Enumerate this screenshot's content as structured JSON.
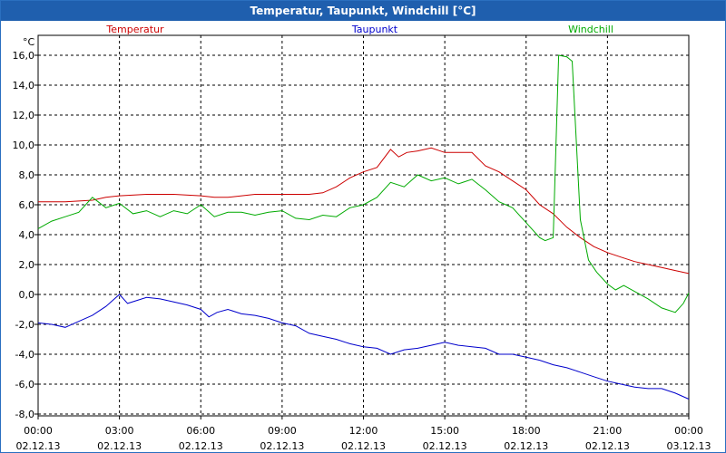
{
  "window": {
    "title": "Temperatur, Taupunkt, Windchill [°C]"
  },
  "chart_data": {
    "type": "line",
    "title": "Temperatur, Taupunkt, Windchill [°C]",
    "ylabel": "°C",
    "xlabel": "",
    "ylim": [
      -8,
      17
    ],
    "xlim": [
      0,
      24
    ],
    "grid": true,
    "yticks": [
      "16,0",
      "14,0",
      "12,0",
      "10,0",
      "8,0",
      "6,0",
      "4,0",
      "2,0",
      "0,0",
      "-2,0",
      "-4,0",
      "-6,0",
      "-8,0"
    ],
    "ytick_values": [
      16,
      14,
      12,
      10,
      8,
      6,
      4,
      2,
      0,
      -2,
      -4,
      -6,
      -8
    ],
    "xticks": [
      {
        "time": "00:00",
        "date": "02.12.13"
      },
      {
        "time": "03:00",
        "date": "02.12.13"
      },
      {
        "time": "06:00",
        "date": "02.12.13"
      },
      {
        "time": "09:00",
        "date": "02.12.13"
      },
      {
        "time": "12:00",
        "date": "02.12.13"
      },
      {
        "time": "15:00",
        "date": "02.12.13"
      },
      {
        "time": "18:00",
        "date": "02.12.13"
      },
      {
        "time": "21:00",
        "date": "02.12.13"
      },
      {
        "time": "00:00",
        "date": "03.12.13"
      }
    ],
    "series": [
      {
        "name": "Temperatur",
        "color": "#cc0000",
        "points": [
          [
            0,
            6.2
          ],
          [
            1,
            6.2
          ],
          [
            2,
            6.3
          ],
          [
            2.5,
            6.5
          ],
          [
            3,
            6.6
          ],
          [
            4,
            6.7
          ],
          [
            5,
            6.7
          ],
          [
            6,
            6.6
          ],
          [
            6.5,
            6.5
          ],
          [
            7,
            6.5
          ],
          [
            8,
            6.7
          ],
          [
            9,
            6.7
          ],
          [
            10,
            6.7
          ],
          [
            10.5,
            6.8
          ],
          [
            11,
            7.2
          ],
          [
            11.5,
            7.8
          ],
          [
            12,
            8.2
          ],
          [
            12.5,
            8.5
          ],
          [
            13,
            9.7
          ],
          [
            13.3,
            9.2
          ],
          [
            13.6,
            9.5
          ],
          [
            14,
            9.6
          ],
          [
            14.5,
            9.8
          ],
          [
            15,
            9.5
          ],
          [
            15.5,
            9.5
          ],
          [
            16,
            9.5
          ],
          [
            16.5,
            8.6
          ],
          [
            17,
            8.2
          ],
          [
            17.5,
            7.6
          ],
          [
            18,
            7.0
          ],
          [
            18.5,
            6.0
          ],
          [
            19,
            5.4
          ],
          [
            19.5,
            4.5
          ],
          [
            20,
            3.8
          ],
          [
            20.5,
            3.2
          ],
          [
            21,
            2.8
          ],
          [
            21.5,
            2.5
          ],
          [
            22,
            2.2
          ],
          [
            22.5,
            2.0
          ],
          [
            23,
            1.8
          ],
          [
            23.5,
            1.6
          ],
          [
            24,
            1.4
          ]
        ]
      },
      {
        "name": "Taupunkt",
        "color": "#0000cc",
        "points": [
          [
            0,
            -1.9
          ],
          [
            0.5,
            -2.0
          ],
          [
            1,
            -2.2
          ],
          [
            1.5,
            -1.8
          ],
          [
            2,
            -1.4
          ],
          [
            2.5,
            -0.8
          ],
          [
            3,
            0.0
          ],
          [
            3.3,
            -0.6
          ],
          [
            4,
            -0.2
          ],
          [
            4.5,
            -0.3
          ],
          [
            5,
            -0.5
          ],
          [
            5.5,
            -0.7
          ],
          [
            6,
            -1.0
          ],
          [
            6.3,
            -1.5
          ],
          [
            6.6,
            -1.2
          ],
          [
            7,
            -1.0
          ],
          [
            7.5,
            -1.3
          ],
          [
            8,
            -1.4
          ],
          [
            8.5,
            -1.6
          ],
          [
            9,
            -1.9
          ],
          [
            9.5,
            -2.1
          ],
          [
            10,
            -2.6
          ],
          [
            10.5,
            -2.8
          ],
          [
            11,
            -3.0
          ],
          [
            11.5,
            -3.3
          ],
          [
            12,
            -3.5
          ],
          [
            12.5,
            -3.6
          ],
          [
            13,
            -4.0
          ],
          [
            13.5,
            -3.7
          ],
          [
            14,
            -3.6
          ],
          [
            14.5,
            -3.4
          ],
          [
            15,
            -3.2
          ],
          [
            15.5,
            -3.4
          ],
          [
            16,
            -3.5
          ],
          [
            16.5,
            -3.6
          ],
          [
            17,
            -4.0
          ],
          [
            17.5,
            -4.0
          ],
          [
            18,
            -4.2
          ],
          [
            18.5,
            -4.4
          ],
          [
            19,
            -4.7
          ],
          [
            19.5,
            -4.9
          ],
          [
            20,
            -5.2
          ],
          [
            20.5,
            -5.5
          ],
          [
            21,
            -5.8
          ],
          [
            21.5,
            -6.0
          ],
          [
            22,
            -6.2
          ],
          [
            22.5,
            -6.3
          ],
          [
            23,
            -6.3
          ],
          [
            23.5,
            -6.6
          ],
          [
            24,
            -7.0
          ]
        ]
      },
      {
        "name": "Windchill",
        "color": "#00aa00",
        "points": [
          [
            0,
            4.4
          ],
          [
            0.5,
            4.9
          ],
          [
            1,
            5.2
          ],
          [
            1.5,
            5.5
          ],
          [
            2,
            6.5
          ],
          [
            2.5,
            5.8
          ],
          [
            3,
            6.1
          ],
          [
            3.5,
            5.4
          ],
          [
            4,
            5.6
          ],
          [
            4.5,
            5.2
          ],
          [
            5,
            5.6
          ],
          [
            5.5,
            5.4
          ],
          [
            6,
            6.0
          ],
          [
            6.5,
            5.2
          ],
          [
            7,
            5.5
          ],
          [
            7.5,
            5.5
          ],
          [
            8,
            5.3
          ],
          [
            8.5,
            5.5
          ],
          [
            9,
            5.6
          ],
          [
            9.5,
            5.1
          ],
          [
            10,
            5.0
          ],
          [
            10.5,
            5.3
          ],
          [
            11,
            5.2
          ],
          [
            11.5,
            5.8
          ],
          [
            12,
            6.0
          ],
          [
            12.5,
            6.5
          ],
          [
            13,
            7.5
          ],
          [
            13.5,
            7.2
          ],
          [
            14,
            8.0
          ],
          [
            14.5,
            7.6
          ],
          [
            15,
            7.8
          ],
          [
            15.5,
            7.4
          ],
          [
            16,
            7.7
          ],
          [
            16.5,
            7.0
          ],
          [
            17,
            6.2
          ],
          [
            17.5,
            5.8
          ],
          [
            18,
            4.8
          ],
          [
            18.5,
            3.8
          ],
          [
            18.7,
            3.6
          ],
          [
            19,
            3.8
          ],
          [
            19.2,
            16.0
          ],
          [
            19.5,
            15.9
          ],
          [
            19.7,
            15.6
          ],
          [
            20,
            5.0
          ],
          [
            20.3,
            2.3
          ],
          [
            20.6,
            1.5
          ],
          [
            21,
            0.7
          ],
          [
            21.3,
            0.3
          ],
          [
            21.6,
            0.6
          ],
          [
            22,
            0.2
          ],
          [
            22.5,
            -0.3
          ],
          [
            23,
            -0.9
          ],
          [
            23.5,
            -1.2
          ],
          [
            23.8,
            -0.6
          ],
          [
            24,
            0.1
          ]
        ]
      }
    ]
  }
}
